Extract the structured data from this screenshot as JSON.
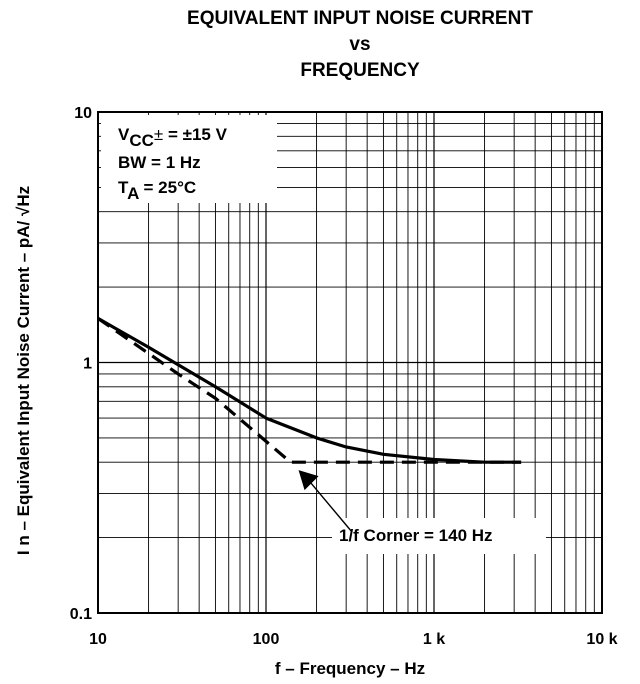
{
  "chart_data": {
    "type": "line",
    "title_lines": [
      "EQUIVALENT INPUT NOISE CURRENT",
      "vs",
      "FREQUENCY"
    ],
    "xlabel": "f – Frequency – Hz",
    "ylabel": "I n – Equivalent Input Noise Current – pA/ √Hz",
    "x_scale": "log",
    "y_scale": "log",
    "xlim": [
      10,
      10000
    ],
    "ylim": [
      0.1,
      10
    ],
    "grid": true,
    "x_ticks": [
      {
        "value": 10,
        "label": "10"
      },
      {
        "value": 100,
        "label": "100"
      },
      {
        "value": 1000,
        "label": "1 k"
      },
      {
        "value": 10000,
        "label": "10 k"
      }
    ],
    "y_ticks": [
      {
        "value": 10,
        "label": "10"
      },
      {
        "value": 1,
        "label": "1"
      },
      {
        "value": 0.1,
        "label": "0.1"
      }
    ],
    "series": [
      {
        "style": "solid",
        "x": [
          10,
          20,
          30,
          50,
          100,
          200,
          300,
          500,
          1000,
          2000,
          3300
        ],
        "y": [
          1.5,
          1.15,
          0.98,
          0.8,
          0.6,
          0.5,
          0.46,
          0.43,
          0.41,
          0.4,
          0.4
        ]
      },
      {
        "style": "dashed",
        "x": [
          10,
          30,
          50,
          140,
          3300
        ],
        "y": [
          1.5,
          0.9,
          0.72,
          0.4,
          0.4
        ]
      }
    ],
    "legend_box": {
      "placement": "top-left",
      "vcc": {
        "main": "V",
        "sub": "CC",
        "sym": "±",
        "rest": " = ±15 V"
      },
      "bw": "BW = 1 Hz",
      "ta": {
        "main": "T",
        "sub": "A",
        "rest": " = 25°C"
      }
    },
    "annotation": {
      "text": "1/f Corner = 140 Hz",
      "points_to": {
        "x": 140,
        "y": 0.4
      }
    }
  }
}
